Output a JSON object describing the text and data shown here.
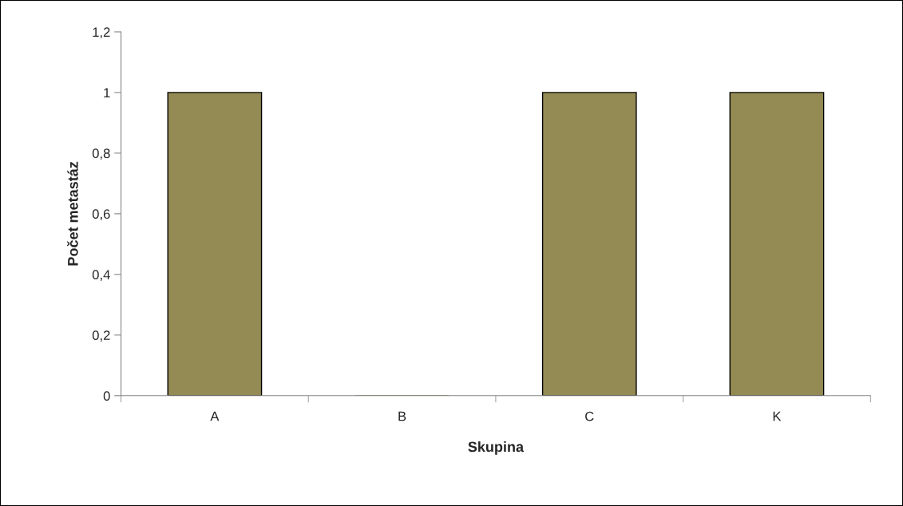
{
  "chart_data": {
    "type": "bar",
    "xlabel": "Skupina",
    "ylabel": "Počet metastáz",
    "categories": [
      "A",
      "B",
      "C",
      "K"
    ],
    "series": [
      {
        "color": "#948a54",
        "values": [
          1,
          0,
          1,
          1
        ]
      }
    ],
    "ylim": [
      0,
      1.2
    ],
    "yticks": [
      0,
      {
        "value": 0.2,
        "label": "0,2"
      },
      {
        "value": 0.4,
        "label": "0,4"
      },
      {
        "value": 0.6,
        "label": "0,6"
      },
      {
        "value": 0.8,
        "label": "0,8"
      },
      1,
      {
        "value": 1.2,
        "label": "1,2"
      }
    ],
    "grid": false,
    "legend": false
  }
}
